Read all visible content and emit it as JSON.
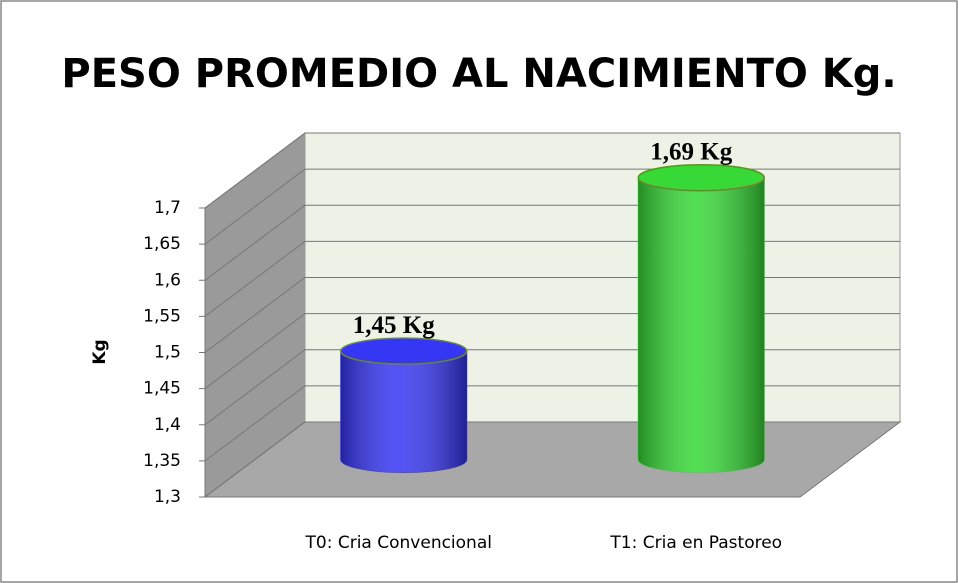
{
  "chart_data": {
    "type": "cylinder",
    "title": "PESO PROMEDIO AL NACIMIENTO Kg.",
    "y_label": "Kg",
    "categories": [
      "T0: Cria Convencional",
      "T1: Cria en Pastoreo"
    ],
    "values": [
      1.45,
      1.69
    ],
    "value_labels": [
      "1,45 Kg",
      "1,69 Kg"
    ],
    "colors": [
      "#3636f5",
      "#36d936"
    ],
    "ylim": [
      1.3,
      1.7
    ],
    "yticks": [
      {
        "value": 1.3,
        "label": "1,3"
      },
      {
        "value": 1.35,
        "label": "1,35"
      },
      {
        "value": 1.4,
        "label": "1,4"
      },
      {
        "value": 1.45,
        "label": "1,45"
      },
      {
        "value": 1.5,
        "label": "1,5"
      },
      {
        "value": 1.55,
        "label": "1,55"
      },
      {
        "value": 1.6,
        "label": "1,6"
      },
      {
        "value": 1.65,
        "label": "1,65"
      },
      {
        "value": 1.7,
        "label": "1,7"
      }
    ],
    "grid": true
  }
}
